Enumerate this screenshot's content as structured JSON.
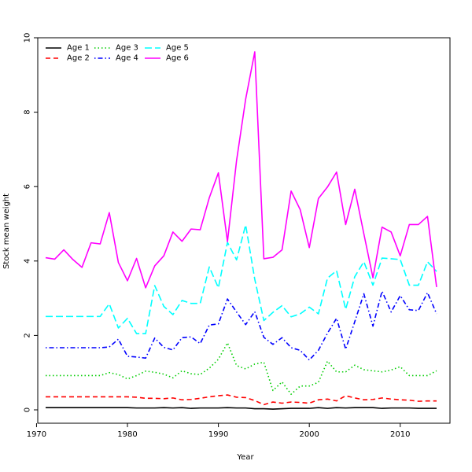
{
  "chart_data": {
    "type": "line",
    "title": "",
    "xlabel": "Year",
    "ylabel": "Stock mean weight",
    "xlim": [
      1970,
      2015
    ],
    "ylim": [
      0,
      10
    ],
    "x_ticks": [
      1970,
      1980,
      1990,
      2000,
      2010
    ],
    "y_ticks": [
      0,
      2,
      4,
      6,
      8,
      10
    ],
    "legend_position": "top-left",
    "x": [
      1971,
      1972,
      1973,
      1974,
      1975,
      1976,
      1977,
      1978,
      1979,
      1980,
      1981,
      1982,
      1983,
      1984,
      1985,
      1986,
      1987,
      1988,
      1989,
      1990,
      1991,
      1992,
      1993,
      1994,
      1995,
      1996,
      1997,
      1998,
      1999,
      2000,
      2001,
      2002,
      2003,
      2004,
      2005,
      2006,
      2007,
      2008,
      2009,
      2010,
      2011,
      2012,
      2013,
      2014
    ],
    "series": [
      {
        "name": "Age 1",
        "color": "#000000",
        "dash": "solid",
        "values": [
          0.06,
          0.06,
          0.06,
          0.06,
          0.06,
          0.06,
          0.06,
          0.06,
          0.06,
          0.06,
          0.05,
          0.05,
          0.05,
          0.06,
          0.05,
          0.06,
          0.04,
          0.05,
          0.05,
          0.05,
          0.06,
          0.05,
          0.05,
          0.03,
          0.03,
          0.02,
          0.03,
          0.04,
          0.04,
          0.04,
          0.06,
          0.04,
          0.06,
          0.05,
          0.06,
          0.06,
          0.06,
          0.04,
          0.05,
          0.05,
          0.05,
          0.04,
          0.04,
          0.04
        ]
      },
      {
        "name": "Age 2",
        "color": "#ff0000",
        "dash": "dashed",
        "values": [
          0.35,
          0.35,
          0.35,
          0.35,
          0.35,
          0.35,
          0.35,
          0.35,
          0.35,
          0.35,
          0.34,
          0.31,
          0.31,
          0.3,
          0.32,
          0.27,
          0.28,
          0.31,
          0.35,
          0.38,
          0.4,
          0.34,
          0.33,
          0.25,
          0.14,
          0.21,
          0.18,
          0.21,
          0.2,
          0.18,
          0.27,
          0.29,
          0.24,
          0.38,
          0.32,
          0.27,
          0.28,
          0.32,
          0.29,
          0.27,
          0.26,
          0.23,
          0.24,
          0.24
        ]
      },
      {
        "name": "Age 3",
        "color": "#00cd00",
        "dash": "dotted",
        "values": [
          0.92,
          0.92,
          0.92,
          0.92,
          0.92,
          0.92,
          0.92,
          1.0,
          0.95,
          0.83,
          0.92,
          1.04,
          1.01,
          0.96,
          0.86,
          1.05,
          0.97,
          0.95,
          1.12,
          1.36,
          1.8,
          1.19,
          1.1,
          1.23,
          1.28,
          0.52,
          0.75,
          0.42,
          0.64,
          0.64,
          0.74,
          1.31,
          1.02,
          1.02,
          1.2,
          1.08,
          1.05,
          1.02,
          1.07,
          1.16,
          0.92,
          0.92,
          0.92,
          1.05
        ]
      },
      {
        "name": "Age 4",
        "color": "#0000ff",
        "dash": "dotdash",
        "values": [
          1.67,
          1.67,
          1.67,
          1.67,
          1.67,
          1.67,
          1.67,
          1.69,
          1.9,
          1.44,
          1.42,
          1.39,
          1.93,
          1.68,
          1.61,
          1.94,
          1.96,
          1.78,
          2.28,
          2.31,
          2.98,
          2.63,
          2.29,
          2.64,
          1.95,
          1.76,
          1.94,
          1.67,
          1.6,
          1.34,
          1.6,
          2.06,
          2.46,
          1.63,
          2.37,
          3.12,
          2.25,
          3.19,
          2.63,
          3.07,
          2.69,
          2.67,
          3.15,
          2.58
        ]
      },
      {
        "name": "Age 5",
        "color": "#00ffff",
        "dash": "longdash",
        "values": [
          2.51,
          2.51,
          2.51,
          2.51,
          2.51,
          2.51,
          2.51,
          2.85,
          2.2,
          2.46,
          2.05,
          2.05,
          3.34,
          2.78,
          2.56,
          2.94,
          2.86,
          2.86,
          3.84,
          3.28,
          4.5,
          4.03,
          4.97,
          3.51,
          2.4,
          2.62,
          2.8,
          2.5,
          2.58,
          2.76,
          2.58,
          3.54,
          3.74,
          2.7,
          3.58,
          3.98,
          3.35,
          4.08,
          4.06,
          4.04,
          3.35,
          3.35,
          3.98,
          3.72
        ]
      },
      {
        "name": "Age 6",
        "color": "#ff00ff",
        "dash": "solid",
        "values": [
          4.09,
          4.05,
          4.3,
          4.04,
          3.83,
          4.49,
          4.46,
          5.3,
          3.96,
          3.47,
          4.07,
          3.28,
          3.87,
          4.14,
          4.78,
          4.53,
          4.86,
          4.84,
          5.7,
          6.37,
          4.52,
          6.7,
          8.35,
          9.62,
          4.06,
          4.1,
          4.3,
          5.88,
          5.38,
          4.36,
          5.68,
          5.99,
          6.39,
          4.98,
          5.93,
          4.73,
          3.55,
          4.91,
          4.78,
          4.14,
          4.98,
          4.98,
          5.2,
          3.3
        ]
      }
    ]
  }
}
